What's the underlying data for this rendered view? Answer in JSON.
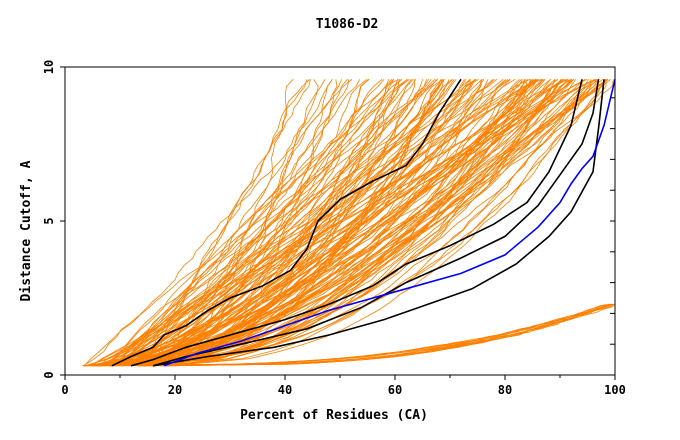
{
  "chart_data": {
    "type": "line",
    "title": "T1086-D2",
    "xlabel": "Percent of Residues (CA)",
    "ylabel": "Distance Cutoff, A",
    "xlim": [
      0,
      100
    ],
    "ylim": [
      0,
      10
    ],
    "x_ticks": [
      "0",
      "20",
      "40",
      "60",
      "80",
      "100"
    ],
    "y_ticks": [
      "0",
      "5",
      "10"
    ],
    "grid": false,
    "legend": "none",
    "colors": {
      "background_models": "#ff8000",
      "highlighted_models": "#000000",
      "target_model": "#0000ff"
    },
    "background_series": {
      "description_count": 160,
      "start_x_range": [
        3,
        20
      ],
      "start_y": 0.3,
      "end_x_range": [
        38,
        100
      ]
    },
    "highlighted_series": [
      {
        "values": [
          [
            8.5,
            0.3
          ],
          [
            12,
            0.6
          ],
          [
            16,
            0.9
          ],
          [
            18,
            1.3
          ],
          [
            22,
            1.6
          ],
          [
            26,
            2.1
          ],
          [
            30,
            2.5
          ],
          [
            36,
            2.9
          ],
          [
            41,
            3.4
          ],
          [
            44,
            4.1
          ],
          [
            46,
            5.0
          ],
          [
            50,
            5.7
          ],
          [
            56,
            6.3
          ],
          [
            62,
            6.8
          ],
          [
            65,
            7.5
          ],
          [
            68,
            8.5
          ],
          [
            72,
            9.6
          ]
        ]
      },
      {
        "values": [
          [
            12,
            0.3
          ],
          [
            16,
            0.5
          ],
          [
            22,
            0.9
          ],
          [
            30,
            1.3
          ],
          [
            40,
            1.8
          ],
          [
            48,
            2.3
          ],
          [
            56,
            2.9
          ],
          [
            62,
            3.6
          ],
          [
            70,
            4.2
          ],
          [
            78,
            4.9
          ],
          [
            84,
            5.6
          ],
          [
            88,
            6.6
          ],
          [
            92,
            8.1
          ],
          [
            94,
            9.6
          ]
        ]
      },
      {
        "values": [
          [
            16,
            0.3
          ],
          [
            22,
            0.6
          ],
          [
            32,
            1.0
          ],
          [
            44,
            1.5
          ],
          [
            54,
            2.2
          ],
          [
            62,
            3.0
          ],
          [
            72,
            3.8
          ],
          [
            80,
            4.5
          ],
          [
            86,
            5.5
          ],
          [
            90,
            6.5
          ],
          [
            94,
            7.5
          ],
          [
            96,
            8.5
          ],
          [
            97,
            9.6
          ]
        ]
      },
      {
        "values": [
          [
            16,
            0.3
          ],
          [
            26,
            0.6
          ],
          [
            38,
            0.9
          ],
          [
            48,
            1.3
          ],
          [
            58,
            1.8
          ],
          [
            66,
            2.3
          ],
          [
            74,
            2.8
          ],
          [
            82,
            3.6
          ],
          [
            88,
            4.5
          ],
          [
            92,
            5.3
          ],
          [
            96,
            6.6
          ],
          [
            97,
            8.0
          ],
          [
            98,
            9.6
          ]
        ]
      }
    ],
    "target_series": {
      "values": [
        [
          18,
          0.3
        ],
        [
          24,
          0.7
        ],
        [
          32,
          1.1
        ],
        [
          40,
          1.6
        ],
        [
          48,
          2.1
        ],
        [
          56,
          2.5
        ],
        [
          64,
          2.9
        ],
        [
          72,
          3.3
        ],
        [
          80,
          3.9
        ],
        [
          86,
          4.8
        ],
        [
          90,
          5.6
        ],
        [
          92,
          6.2
        ],
        [
          94,
          6.7
        ],
        [
          96,
          7.1
        ],
        [
          98,
          8.1
        ],
        [
          100,
          9.6
        ]
      ]
    }
  }
}
